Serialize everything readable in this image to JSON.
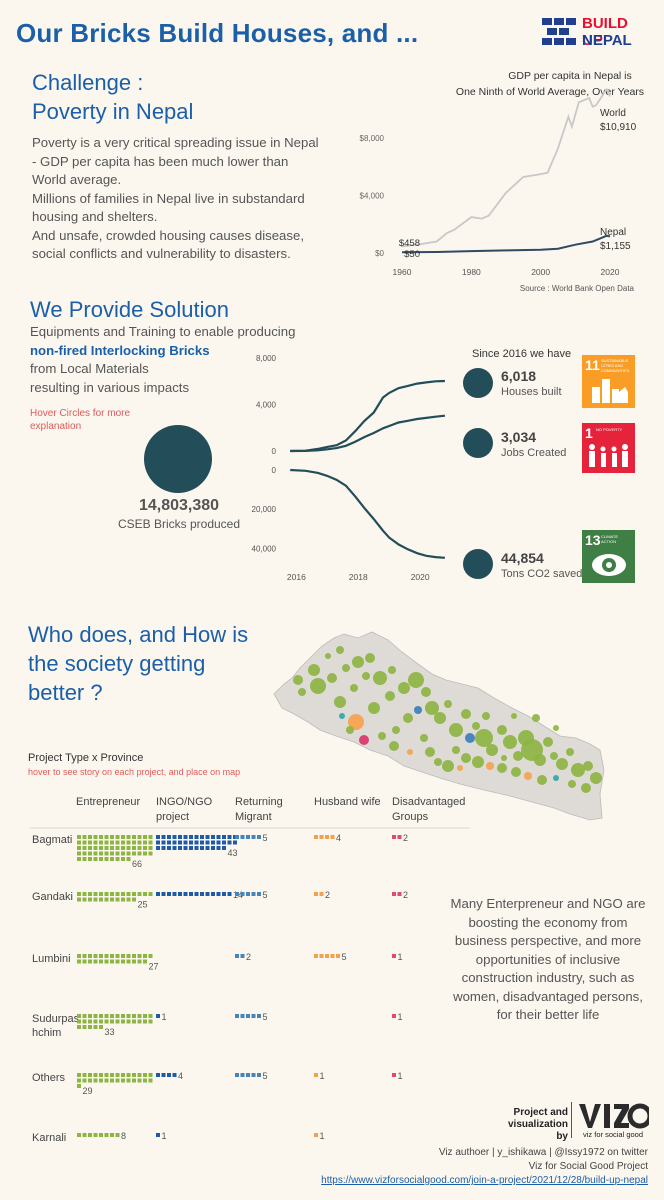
{
  "header": {
    "title": "Our Bricks Build Houses, and ...",
    "logo_line1": "BUILD UP",
    "logo_line2": "NEPAL"
  },
  "challenge": {
    "title_line1": "Challenge :",
    "title_line2": "Poverty in Nepal",
    "paragraph1": "Poverty is a very critical spreading issue in Nepal - GDP per capita has been much lower than World average.",
    "paragraph2": "Millions of families in Nepal live in substandard housing and shelters.",
    "paragraph3": "And unsafe, crowded housing causes disease, social conflicts and vulnerability to disasters."
  },
  "solution": {
    "title": "We Provide Solution",
    "line1": "Equipments and Training to enable producing",
    "line2_bold": "non-fired Interlocking Bricks",
    "line3": "from Local Materials",
    "line4": "resulting in various impacts",
    "hover_note": "Hover Circles for more explanation",
    "bricks_value": "14,803,380",
    "bricks_label": "CSEB Bricks produced",
    "since_label": "Since 2016 we have",
    "metrics": [
      {
        "value": "6,018",
        "label": "Houses built",
        "sdg_num": "11",
        "sdg_text": "SUSTAINABLE CITIES AND COMMUNITIES",
        "sdg_color": "#f99d26"
      },
      {
        "value": "3,034",
        "label": "Jobs Created",
        "sdg_num": "1",
        "sdg_text": "NO POVERTY",
        "sdg_color": "#e5243b"
      },
      {
        "value": "44,854",
        "label": "Tons CO2 saved",
        "sdg_num": "13",
        "sdg_text": "CLIMATE ACTION",
        "sdg_color": "#3f7e44"
      }
    ]
  },
  "society": {
    "title_line1": "Who does, and How is",
    "title_line2": "the society getting",
    "title_line3": "better ?",
    "matrix_title": "Project Type x Province",
    "matrix_note": "hover to see story on each project, and place on map",
    "narrative": "Many Enterpreneur and NGO are boosting the economy from business perspective, and more opportunities of inclusive construction industry, such as women, disadvantaged persons, for their better life"
  },
  "footer": {
    "project_label": "Project and visualization by",
    "vfsg_logo": "viz for social good",
    "author_line": "Viz authoer | y_ishikawa | @Issy1972 on twitter",
    "project_line": "Viz for Social Good Project",
    "url": "https://www.vizforsocialgood.com/join-a-project/2021/12/28/build-up-nepal"
  },
  "chart_data": [
    {
      "type": "line",
      "title": "GDP per capita in Nepal is One Ninth of World Average, Over Years",
      "source": "Source : World Bank Open Data",
      "xlim": [
        1960,
        2020
      ],
      "ylim": [
        0,
        11500
      ],
      "x_ticks": [
        1960,
        1980,
        2000,
        2020
      ],
      "y_ticks": [
        0,
        4000,
        8000
      ],
      "y_tick_labels": [
        "$0",
        "$4,000",
        "$8,000"
      ],
      "start_labels": [
        "$458",
        "$50"
      ],
      "series": [
        {
          "name": "World",
          "end_label": "$10,910",
          "color": "#c8c8c8",
          "x": [
            1960,
            1965,
            1970,
            1973,
            1975,
            1980,
            1983,
            1985,
            1990,
            1995,
            2000,
            2002,
            2005,
            2008,
            2009,
            2011,
            2014,
            2015,
            2016,
            2019,
            2020
          ],
          "y": [
            458,
            600,
            800,
            1400,
            1600,
            2500,
            2400,
            2600,
            4200,
            5300,
            5500,
            5600,
            7300,
            9500,
            8800,
            10500,
            10800,
            10200,
            10300,
            11400,
            10910
          ]
        },
        {
          "name": "Nepal",
          "end_label": "$1,155",
          "color": "#2f4a63",
          "x": [
            1960,
            1970,
            1980,
            1990,
            2000,
            2005,
            2010,
            2015,
            2019,
            2020
          ],
          "y": [
            50,
            70,
            130,
            180,
            230,
            300,
            580,
            800,
            1200,
            1155
          ]
        }
      ]
    },
    {
      "type": "line",
      "title": "",
      "x_ticks": [
        2016,
        2018,
        2020
      ],
      "panels": [
        {
          "ylim": [
            0,
            8000
          ],
          "y_ticks": [
            0,
            4000,
            8000
          ],
          "y_tick_labels": [
            "0",
            "4,000",
            "8,000"
          ],
          "series": [
            {
              "label": "Houses built",
              "x": [
                2015.8,
                2016.3,
                2016.7,
                2017,
                2017.3,
                2017.6,
                2017.9,
                2018.2,
                2018.5,
                2018.8,
                2019,
                2019.3,
                2019.6,
                2019.9,
                2020.2,
                2020.5,
                2020.8
              ],
              "y": [
                0,
                30,
                180,
                350,
                500,
                900,
                1700,
                2600,
                3300,
                4600,
                5000,
                5400,
                5600,
                5800,
                5900,
                6000,
                6018
              ]
            },
            {
              "label": "Jobs Created",
              "x": [
                2015.8,
                2016.3,
                2016.7,
                2017,
                2017.3,
                2017.6,
                2017.9,
                2018.2,
                2018.5,
                2018.8,
                2019,
                2019.3,
                2019.6,
                2019.9,
                2020.2,
                2020.5,
                2020.8
              ],
              "y": [
                0,
                10,
                60,
                150,
                250,
                450,
                800,
                1200,
                1550,
                1950,
                2150,
                2450,
                2600,
                2750,
                2850,
                2950,
                3034
              ]
            }
          ]
        },
        {
          "ylim": [
            0,
            48000
          ],
          "y_ticks": [
            0,
            20000,
            40000
          ],
          "y_tick_labels": [
            "0",
            "20,000",
            "40,000"
          ],
          "inverted": true,
          "series": [
            {
              "label": "Tons CO2 saved",
              "x": [
                2015.8,
                2016.3,
                2016.7,
                2017,
                2017.3,
                2017.6,
                2017.9,
                2018.2,
                2018.5,
                2018.8,
                2019,
                2019.3,
                2019.6,
                2019.9,
                2020.2,
                2020.5,
                2020.8
              ],
              "y": [
                0,
                400,
                1500,
                3000,
                5000,
                8000,
                13500,
                19500,
                25000,
                31000,
                34500,
                38000,
                40500,
                42500,
                43800,
                44500,
                44854
              ]
            }
          ]
        }
      ]
    },
    {
      "type": "table",
      "title": "Project Type x Province",
      "columns": [
        "Entrepreneur",
        "INGO/NGO project",
        "Returning Migrant",
        "Husband wife",
        "Disadvantaged Groups"
      ],
      "column_colors": [
        "#8db543",
        "#1f5aa5",
        "#4685b8",
        "#f2a14f",
        "#e04a6e"
      ],
      "rows": [
        {
          "province": "Bagmati",
          "values": [
            66,
            43,
            5,
            4,
            2
          ]
        },
        {
          "province": "Gandaki",
          "values": [
            25,
            14,
            5,
            2,
            2
          ]
        },
        {
          "province": "Lumbini",
          "values": [
            27,
            null,
            2,
            5,
            1
          ]
        },
        {
          "province": "Sudurpas hchim",
          "values": [
            33,
            1,
            5,
            null,
            1
          ]
        },
        {
          "province": "Others",
          "values": [
            29,
            4,
            5,
            1,
            1
          ]
        },
        {
          "province": "Karnali",
          "values": [
            8,
            1,
            null,
            1,
            null
          ]
        }
      ]
    }
  ]
}
